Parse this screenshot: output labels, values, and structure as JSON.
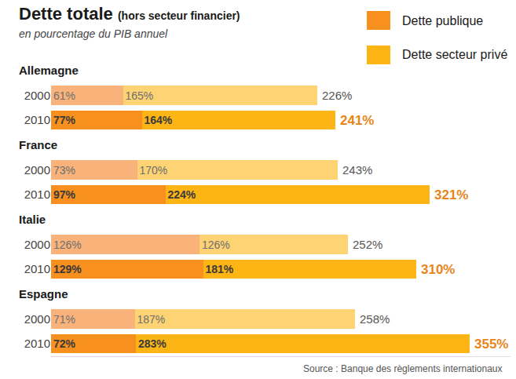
{
  "chart_data": {
    "type": "bar",
    "title": "Dette totale",
    "title_note": "(hors secteur financier)",
    "subtitle": "en pourcentage du PIB annuel",
    "source": "Source : Banque des règlements internationaux",
    "orientation": "horizontal",
    "stacked": true,
    "data_labels": true,
    "tick_labels": "y",
    "grid": false,
    "legend": "top-right",
    "xlim": [
      0,
      390
    ],
    "groups": [
      "Allemagne",
      "Allemagne",
      "France",
      "France",
      "Italie",
      "Italie",
      "Espagne",
      "Espagne"
    ],
    "categories": [
      "2000",
      "2010",
      "2000",
      "2010",
      "2000",
      "2010",
      "2000",
      "2010"
    ],
    "series": [
      {
        "name": "Dette publique",
        "color": "#f7901e",
        "colors": [
          "#f9b37a",
          "#f7901e",
          "#f9b37a",
          "#f7901e",
          "#f9b37a",
          "#f7901e",
          "#f9b37a",
          "#f7901e"
        ],
        "values": [
          61,
          77,
          73,
          97,
          126,
          129,
          71,
          72
        ],
        "value_labels": [
          "61%",
          "77%",
          "73%",
          "97%",
          "126%",
          "129%",
          "71%",
          "72%"
        ]
      },
      {
        "name": "Dette secteur privé",
        "color": "#fdb515",
        "colors": [
          "#fdd374",
          "#fdb515",
          "#fdd374",
          "#fdb515",
          "#fdd374",
          "#fdb515",
          "#fdd374",
          "#fdb515"
        ],
        "values": [
          165,
          164,
          170,
          224,
          126,
          181,
          187,
          283
        ],
        "value_labels": [
          "165%",
          "164%",
          "170%",
          "224%",
          "126%",
          "181%",
          "187%",
          "283%"
        ]
      }
    ],
    "totals": {
      "values": [
        226,
        241,
        243,
        321,
        252,
        310,
        258,
        355
      ],
      "value_labels": [
        "226%",
        "241%",
        "243%",
        "321%",
        "252%",
        "310%",
        "258%",
        "355%"
      ],
      "colors": [
        "#555555",
        "#e8851a",
        "#555555",
        "#e8851a",
        "#555555",
        "#e8851a",
        "#555555",
        "#e8851a"
      ]
    }
  }
}
